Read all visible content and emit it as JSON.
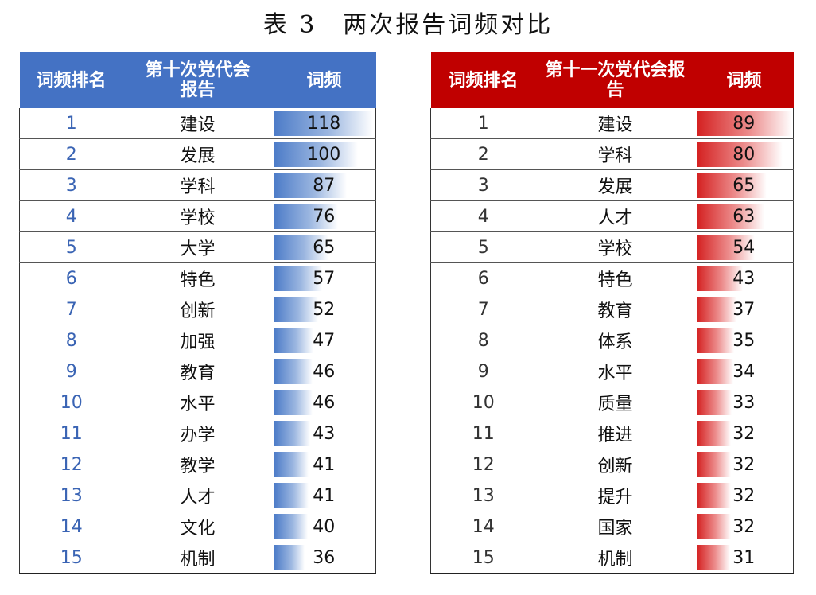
{
  "caption": "表 3　两次报告词频对比",
  "left_table": {
    "headers": {
      "rank": "词频排名",
      "report": "第十次党代会报告",
      "freq": "词频"
    },
    "max": 118,
    "rows": [
      {
        "rank": "1",
        "word": "建设",
        "count": 118
      },
      {
        "rank": "2",
        "word": "发展",
        "count": 100
      },
      {
        "rank": "3",
        "word": "学科",
        "count": 87
      },
      {
        "rank": "4",
        "word": "学校",
        "count": 76
      },
      {
        "rank": "5",
        "word": "大学",
        "count": 65
      },
      {
        "rank": "6",
        "word": "特色",
        "count": 57
      },
      {
        "rank": "7",
        "word": "创新",
        "count": 52
      },
      {
        "rank": "8",
        "word": "加强",
        "count": 47
      },
      {
        "rank": "9",
        "word": "教育",
        "count": 46
      },
      {
        "rank": "10",
        "word": "水平",
        "count": 46
      },
      {
        "rank": "11",
        "word": "办学",
        "count": 43
      },
      {
        "rank": "12",
        "word": "教学",
        "count": 41
      },
      {
        "rank": "13",
        "word": "人才",
        "count": 41
      },
      {
        "rank": "14",
        "word": "文化",
        "count": 40
      },
      {
        "rank": "15",
        "word": "机制",
        "count": 36
      }
    ]
  },
  "right_table": {
    "headers": {
      "rank": "词频排名",
      "report": "第十一次党代会报告",
      "freq": "词频"
    },
    "max": 89,
    "rows": [
      {
        "rank": "1",
        "word": "建设",
        "count": 89
      },
      {
        "rank": "2",
        "word": "学科",
        "count": 80
      },
      {
        "rank": "3",
        "word": "发展",
        "count": 65
      },
      {
        "rank": "4",
        "word": "人才",
        "count": 63
      },
      {
        "rank": "5",
        "word": "学校",
        "count": 54
      },
      {
        "rank": "6",
        "word": "特色",
        "count": 43
      },
      {
        "rank": "7",
        "word": "教育",
        "count": 37
      },
      {
        "rank": "8",
        "word": "体系",
        "count": 35
      },
      {
        "rank": "9",
        "word": "水平",
        "count": 34
      },
      {
        "rank": "10",
        "word": "质量",
        "count": 33
      },
      {
        "rank": "11",
        "word": "推进",
        "count": 32
      },
      {
        "rank": "12",
        "word": "创新",
        "count": 32
      },
      {
        "rank": "13",
        "word": "提升",
        "count": 32
      },
      {
        "rank": "14",
        "word": "国家",
        "count": 32
      },
      {
        "rank": "15",
        "word": "机制",
        "count": 31
      }
    ]
  },
  "colors": {
    "left_header": "#4472c4",
    "right_header": "#c00000"
  }
}
